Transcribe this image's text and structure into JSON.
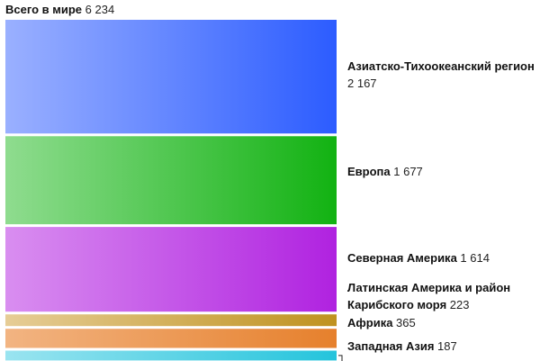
{
  "total": {
    "label": "Всего в мире",
    "value": "6 234"
  },
  "chart_data": {
    "type": "bar",
    "orientation": "stacked-horizontal-bands",
    "unit": "",
    "total": 6234,
    "categories": [
      "Азиатско-Тихоокеанский регион",
      "Европа",
      "Северная Америка",
      "Латинская Америка и район Карибского моря",
      "Африка",
      "Западная Азия"
    ],
    "values": [
      2167,
      1677,
      1614,
      223,
      365,
      187
    ],
    "value_labels": [
      "2 167",
      "1 677",
      "1 614",
      "223",
      "365",
      "187"
    ],
    "colors": [
      [
        "#9ab0ff",
        "#2c5cff"
      ],
      [
        "#8fdc8f",
        "#12b212"
      ],
      [
        "#d98ef0",
        "#b022e0"
      ],
      [
        "#e6cd96",
        "#bf921f"
      ],
      [
        "#f2b482",
        "#e6802c"
      ],
      [
        "#9ae4f0",
        "#24c4dc"
      ]
    ],
    "title": "",
    "xlabel": "",
    "ylabel": ""
  }
}
